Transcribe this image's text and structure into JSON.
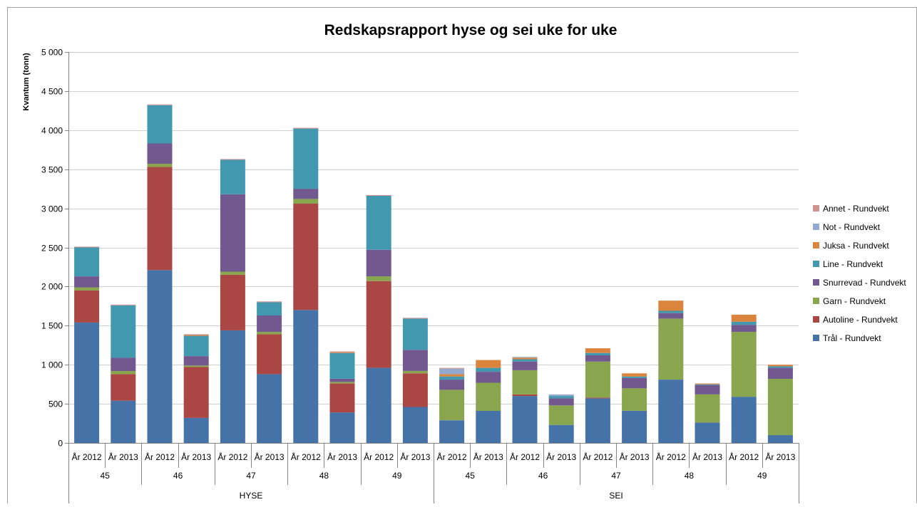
{
  "chart_data": {
    "type": "bar",
    "stacked": true,
    "title": "Redskapsrapport hyse og sei uke for uke",
    "ylabel": "Kvantum (tonn)",
    "ylim": [
      0,
      5000
    ],
    "yticks": [
      "0",
      "500",
      "1 000",
      "1 500",
      "2 000",
      "2 500",
      "3 000",
      "3 500",
      "4 000",
      "4 500",
      "5 000"
    ],
    "ytick_values": [
      0,
      500,
      1000,
      1500,
      2000,
      2500,
      3000,
      3500,
      4000,
      4500,
      5000
    ],
    "grid": true,
    "legend_position": "right",
    "categories": [
      "År 2012",
      "År 2013",
      "År 2012",
      "År 2013",
      "År 2012",
      "År 2013",
      "År 2012",
      "År 2013",
      "År 2012",
      "År 2013",
      "År 2012",
      "År 2013",
      "År 2012",
      "År 2013",
      "År 2012",
      "År 2013",
      "År 2012",
      "År 2013",
      "År 2012",
      "År 2013"
    ],
    "week_groups": [
      "45",
      "46",
      "47",
      "48",
      "49",
      "45",
      "46",
      "47",
      "48",
      "49"
    ],
    "species_groups": [
      "HYSE",
      "SEI"
    ],
    "series": [
      {
        "name": "Trål - Rundvekt",
        "color": "#4572A7",
        "values": [
          1540,
          540,
          2210,
          320,
          1440,
          880,
          1700,
          390,
          960,
          460,
          290,
          410,
          600,
          230,
          570,
          410,
          810,
          260,
          590,
          100
        ]
      },
      {
        "name": "Autoline - Rundvekt",
        "color": "#AA4643",
        "values": [
          410,
          340,
          1320,
          650,
          710,
          510,
          1360,
          370,
          1110,
          430,
          0,
          0,
          20,
          0,
          10,
          0,
          0,
          0,
          0,
          0
        ]
      },
      {
        "name": "Garn - Rundvekt",
        "color": "#89A54E",
        "values": [
          40,
          40,
          40,
          20,
          40,
          30,
          60,
          20,
          60,
          30,
          390,
          360,
          310,
          250,
          460,
          290,
          780,
          360,
          830,
          720
        ]
      },
      {
        "name": "Snurrevad - Rundvekt",
        "color": "#71588F",
        "values": [
          140,
          170,
          260,
          120,
          990,
          210,
          130,
          40,
          340,
          270,
          130,
          140,
          110,
          90,
          80,
          130,
          70,
          120,
          90,
          140
        ]
      },
      {
        "name": "Line - Rundvekt",
        "color": "#4198AF",
        "values": [
          370,
          670,
          490,
          260,
          440,
          170,
          770,
          330,
          690,
          400,
          40,
          50,
          30,
          30,
          30,
          20,
          30,
          10,
          40,
          20
        ]
      },
      {
        "name": "Juksa - Rundvekt",
        "color": "#DB843D",
        "values": [
          0,
          0,
          0,
          10,
          0,
          0,
          0,
          10,
          0,
          0,
          30,
          100,
          20,
          0,
          60,
          40,
          130,
          10,
          90,
          20
        ]
      },
      {
        "name": "Not - Rundvekt",
        "color": "#93A9CF",
        "values": [
          0,
          0,
          0,
          0,
          0,
          0,
          0,
          0,
          0,
          0,
          70,
          0,
          10,
          20,
          0,
          0,
          0,
          0,
          0,
          0
        ]
      },
      {
        "name": "Annet - Rundvekt",
        "color": "#D19392",
        "values": [
          10,
          10,
          10,
          10,
          10,
          10,
          10,
          10,
          10,
          10,
          10,
          0,
          0,
          0,
          0,
          0,
          0,
          0,
          0,
          0
        ]
      }
    ]
  },
  "colors": {
    "axis": "#868686",
    "grid": "#d0d0d0",
    "border": "#a0a0a0"
  }
}
